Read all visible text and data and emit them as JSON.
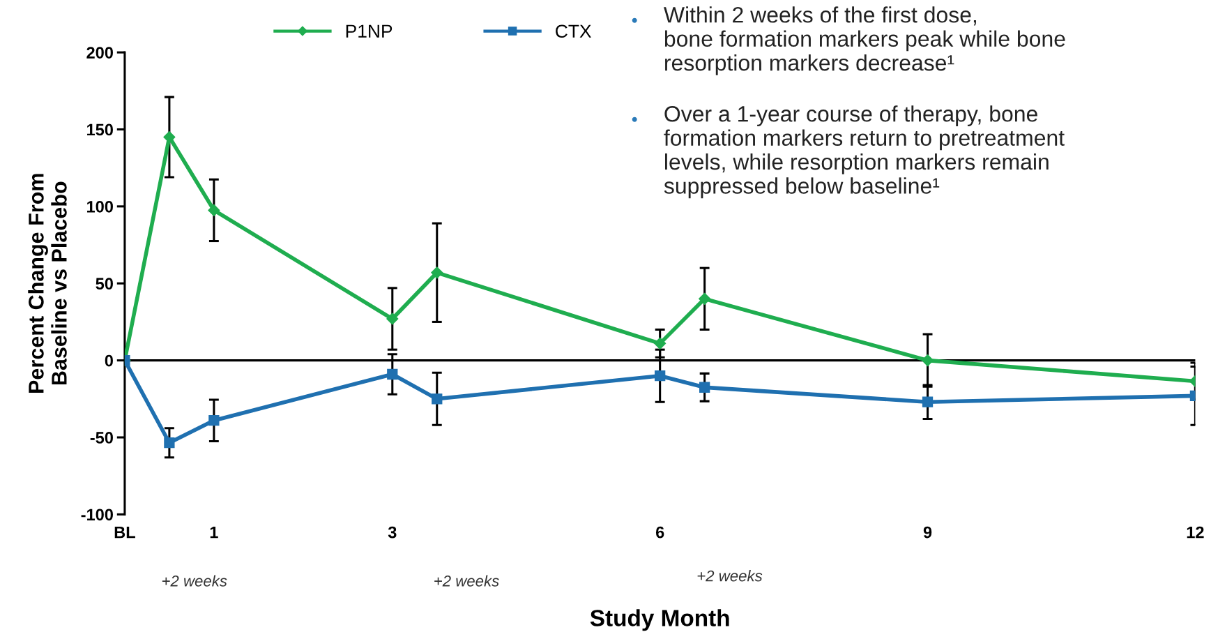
{
  "chart_data": {
    "type": "line",
    "xlabel": "Study Month",
    "ylabel": "Percent Change From\nBaseline vs Placebo",
    "x": [
      0,
      0.5,
      1,
      3,
      3.5,
      6,
      6.5,
      9,
      12
    ],
    "series": [
      {
        "name": "P1NP",
        "color": "#1fad4f",
        "marker": "diamond",
        "values": [
          0,
          145,
          97.5,
          27,
          57,
          11,
          40,
          0,
          -13.5
        ],
        "errors": [
          null,
          26,
          20,
          20,
          32,
          9,
          20,
          17,
          12
        ]
      },
      {
        "name": "CTX",
        "color": "#1f70b0",
        "marker": "square",
        "values": [
          0,
          -53.5,
          -39,
          -9,
          -25,
          -10,
          -17.5,
          -27,
          -23
        ],
        "errors": [
          null,
          9.5,
          13.5,
          13,
          17,
          17,
          9,
          11,
          19
        ]
      }
    ],
    "xlim": [
      0,
      12
    ],
    "xticks": [
      {
        "value": 0,
        "label": "BL"
      },
      1,
      3,
      6,
      9,
      12
    ],
    "ylim": [
      -100,
      200
    ],
    "yticks": [
      -100,
      -50,
      0,
      50,
      100,
      150,
      200
    ],
    "ref_lines": [
      {
        "axis": "y",
        "value": 0,
        "color": "#000000"
      }
    ],
    "legend": "top",
    "grid": false,
    "annotations": [
      "+2 weeks",
      "+2 weeks",
      "+2 weeks",
      "Within 2 weeks of the first dose,\nbone formation markers peak while bone\nresorption markers decrease¹",
      "Over a 1-year course of therapy, bone\nformation markers return to pretreatment\nlevels, while resorption markers remain\nsuppressed below baseline¹"
    ]
  }
}
